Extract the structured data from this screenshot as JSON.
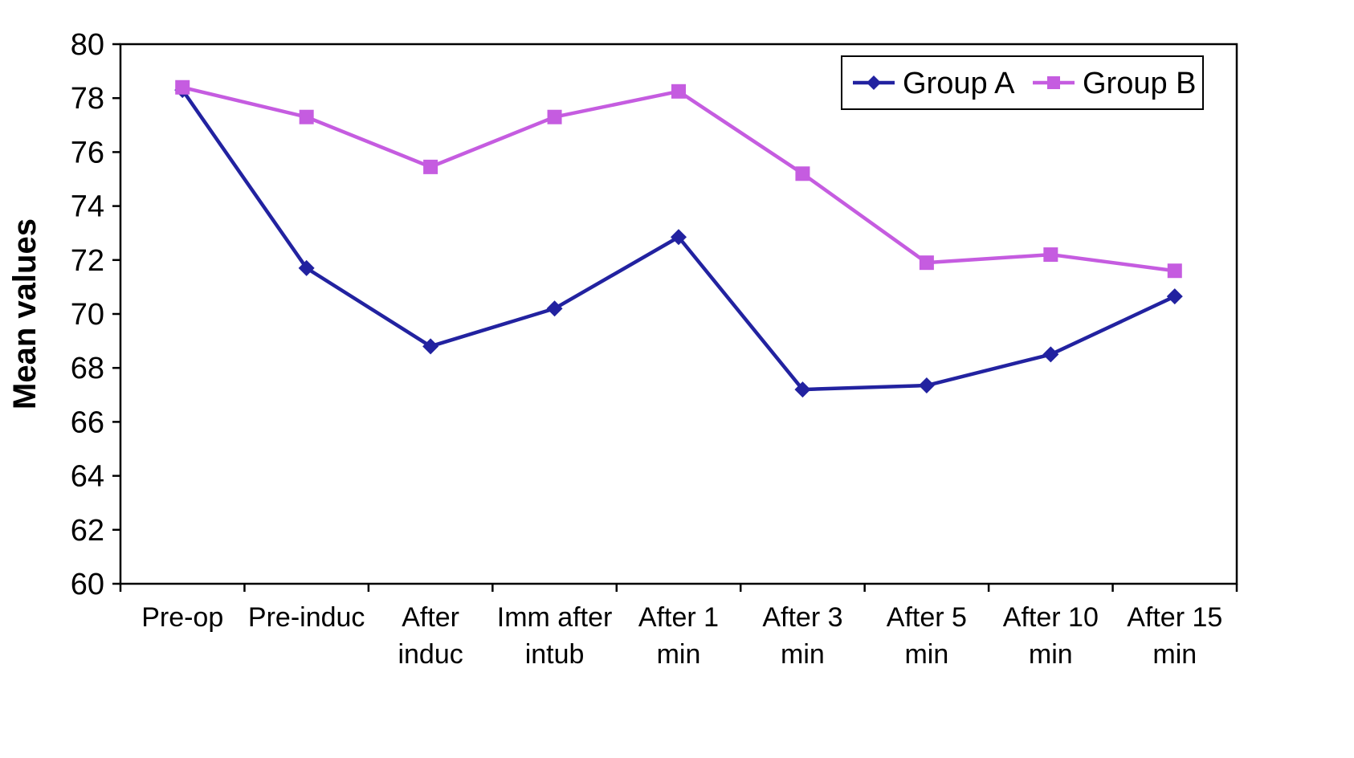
{
  "chart_data": {
    "type": "line",
    "title": "",
    "xlabel": "",
    "ylabel": "Mean values",
    "ylim": [
      60,
      80
    ],
    "ytick_step": 2,
    "grid": false,
    "legend_position": "top-right-inside",
    "background_color": "#ffffff",
    "axis_color": "#000000",
    "categories": [
      [
        "Pre-op"
      ],
      [
        "Pre-induc"
      ],
      [
        "After",
        "induc"
      ],
      [
        "Imm after",
        "intub"
      ],
      [
        "After 1",
        "min"
      ],
      [
        "After 3",
        "min"
      ],
      [
        "After 5",
        "min"
      ],
      [
        "After 10",
        "min"
      ],
      [
        "After 15",
        "min"
      ]
    ],
    "series": [
      {
        "name": "Group A",
        "color": "#2222A0",
        "marker": "diamond",
        "values": [
          78.3,
          71.7,
          68.8,
          70.2,
          72.85,
          67.2,
          67.35,
          68.5,
          70.65
        ]
      },
      {
        "name": "Group B",
        "color": "#C55CE0",
        "marker": "square",
        "values": [
          78.4,
          77.3,
          75.45,
          77.3,
          78.25,
          75.2,
          71.9,
          72.2,
          71.6
        ]
      }
    ]
  }
}
